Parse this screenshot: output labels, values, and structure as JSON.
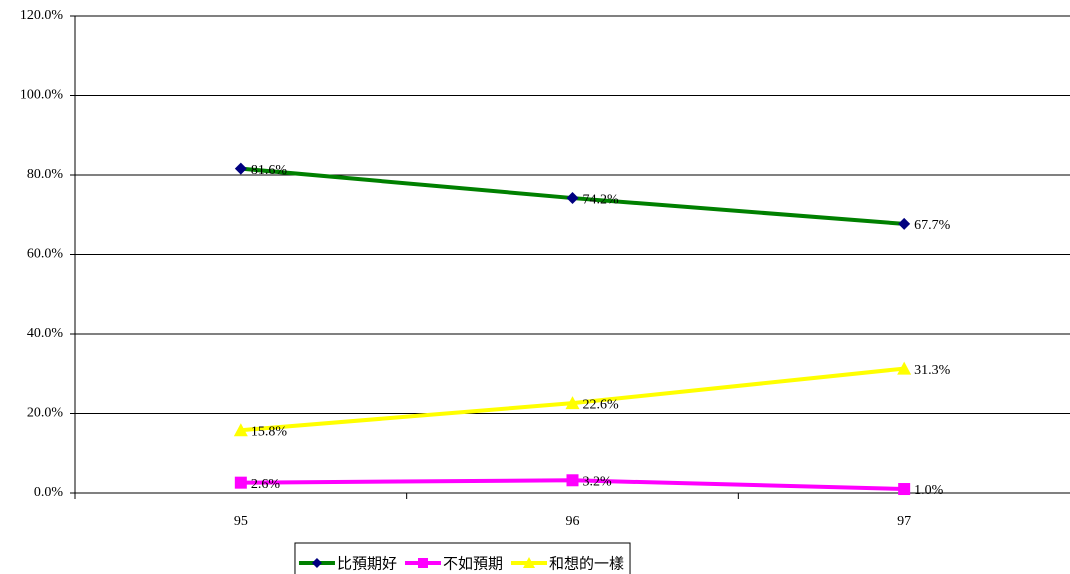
{
  "chart_data": {
    "type": "line",
    "categories": [
      "95",
      "96",
      "97"
    ],
    "series": [
      {
        "name": "比預期好",
        "color": "#008000",
        "marker": "diamond",
        "marker_color": "#000080",
        "values": [
          81.6,
          74.2,
          67.7
        ],
        "value_labels": [
          "81.6%",
          "74.2%",
          "67.7%"
        ]
      },
      {
        "name": "不如預期",
        "color": "#ff00ff",
        "marker": "square",
        "marker_color": "#ff00ff",
        "values": [
          2.6,
          3.2,
          1.0
        ],
        "value_labels": [
          "2.6%",
          "3.2%",
          "1.0%"
        ]
      },
      {
        "name": "和想的一樣",
        "color": "#ffff00",
        "marker": "triangle",
        "marker_color": "#ffff00",
        "values": [
          15.8,
          22.6,
          31.3
        ],
        "value_labels": [
          "15.8%",
          "22.6%",
          "31.3%"
        ]
      }
    ],
    "ylim": [
      0,
      120
    ],
    "yticks": [
      {
        "value": 0,
        "label": "0.0%"
      },
      {
        "value": 20,
        "label": "20.0%"
      },
      {
        "value": 40,
        "label": "40.0%"
      },
      {
        "value": 60,
        "label": "60.0%"
      },
      {
        "value": 80,
        "label": "80.0%"
      },
      {
        "value": 100,
        "label": "100.0%"
      },
      {
        "value": 120,
        "label": "120.0%"
      }
    ],
    "grid": true,
    "legend": "bottom"
  }
}
